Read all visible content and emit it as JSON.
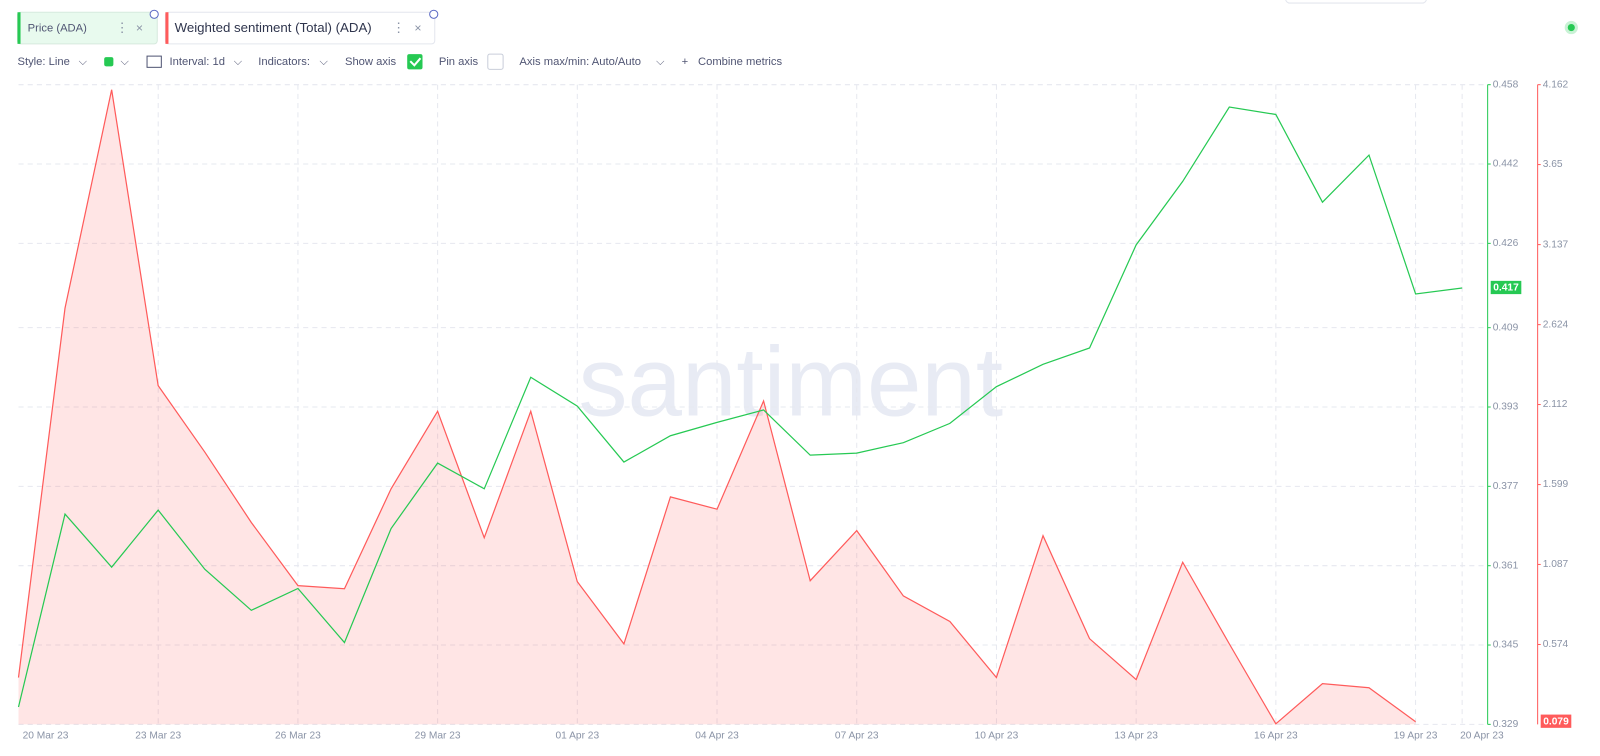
{
  "ui": {
    "toolbar": {
      "style": "Style: Line",
      "interval": "Interval: 1d",
      "indicators": "Indicators:",
      "show_axis": "Show axis",
      "pin_axis": "Pin axis",
      "axis_minmax": "Axis max/min: Auto/Auto",
      "combine": "Combine metrics"
    },
    "watermark": "santiment"
  },
  "chart_data": {
    "type": "line",
    "categories": [
      "20 Mar 23",
      null,
      null,
      "23 Mar 23",
      null,
      null,
      "26 Mar 23",
      null,
      null,
      "29 Mar 23",
      null,
      null,
      "01 Apr 23",
      null,
      null,
      "04 Apr 23",
      null,
      null,
      "07 Apr 23",
      null,
      null,
      "10 Apr 23",
      null,
      null,
      "13 Apr 23",
      null,
      null,
      "16 Apr 23",
      null,
      null,
      "19 Apr 23",
      "20 Apr 23"
    ],
    "series": [
      {
        "name": "Price (ADA)",
        "color": "#26c953",
        "values": [
          0.3325,
          0.3714,
          0.3607,
          0.3722,
          0.3603,
          0.352,
          0.3564,
          0.3455,
          0.3685,
          0.3817,
          0.3765,
          0.399,
          0.3932,
          0.3819,
          0.3872,
          0.3899,
          0.3924,
          0.3833,
          0.3837,
          0.3858,
          0.3897,
          0.3971,
          0.4016,
          0.4049,
          0.4257,
          0.4385,
          0.4535,
          0.452,
          0.4343,
          0.4438,
          0.4158,
          0.417
        ]
      },
      {
        "name": "Weighted sentiment (Total) (ADA)",
        "color": "#ff5b5b",
        "axis": "y2",
        "values": [
          0.362,
          2.73,
          4.129,
          2.233,
          1.807,
          1.356,
          0.951,
          0.931,
          1.572,
          2.069,
          1.258,
          2.069,
          0.977,
          0.578,
          1.52,
          1.441,
          2.135,
          0.983,
          1.304,
          0.885,
          0.722,
          0.362,
          1.271,
          0.611,
          0.349,
          1.101,
          0.578,
          0.065,
          0.323,
          0.297,
          0.079,
          null
        ]
      }
    ],
    "ylim": [
      0.329,
      0.458
    ],
    "yticks": [
      0.329,
      0.345,
      0.361,
      0.377,
      0.393,
      0.409,
      0.426,
      0.442,
      0.458
    ],
    "y2lim": [
      0.062,
      4.162
    ],
    "y2ticks": [
      0.574,
      1.087,
      1.599,
      2.112,
      2.624,
      3.137,
      3.65,
      4.162
    ],
    "grid": true
  }
}
